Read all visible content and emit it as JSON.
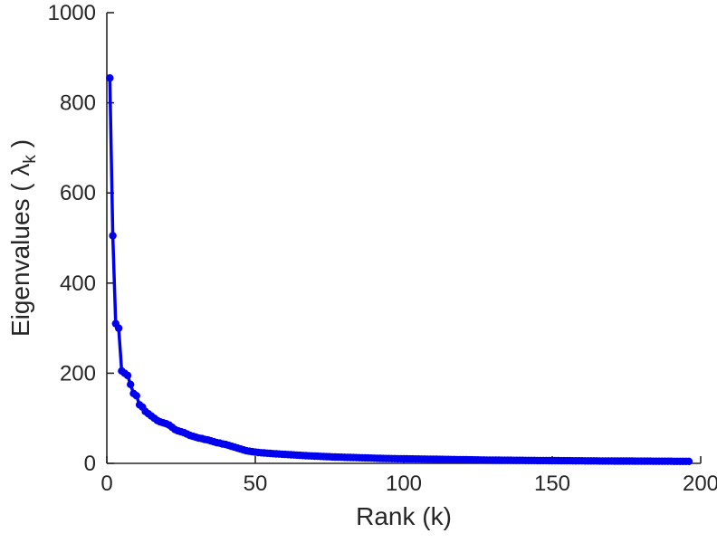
{
  "figure": {
    "background": "#ffffff",
    "axis_color": "#262626",
    "tick_label_color": "#262626"
  },
  "chart_data": {
    "type": "line",
    "title": "",
    "xlabel": "Rank (k)",
    "ylabel": "Eigenvalues ( λ_k )",
    "ylabel_parts": {
      "prefix": "Eigenvalues ( ",
      "symbol": "λ",
      "subscript": "k",
      "suffix": " )"
    },
    "x_range": [
      0,
      200
    ],
    "y_range": [
      0,
      1000
    ],
    "xticks": [
      0,
      50,
      100,
      150,
      200
    ],
    "yticks": [
      0,
      200,
      400,
      600,
      800,
      1000
    ],
    "grid": false,
    "legend": null,
    "series": [
      {
        "name": "eigenvalues",
        "color": "#0000ee",
        "marker": "circle",
        "x_start": 1,
        "x_step": 1,
        "x_description": "k = 1 to 196",
        "y": [
          855,
          505,
          310,
          300,
          205,
          200,
          195,
          175,
          155,
          150,
          130,
          125,
          115,
          110,
          105,
          100,
          95,
          92,
          90,
          88,
          85,
          80,
          75,
          72,
          70,
          68,
          65,
          62,
          60,
          58,
          56,
          55,
          53,
          52,
          50,
          48,
          46,
          45,
          43,
          42,
          40,
          38,
          36,
          34,
          32,
          30,
          28,
          27,
          26,
          25,
          24,
          23.5,
          23,
          22.5,
          22,
          21.5,
          21,
          20.6,
          20.2,
          19.8,
          19.4,
          19,
          18.6,
          18.2,
          17.8,
          17.4,
          17,
          16.7,
          16.4,
          16.1,
          15.8,
          15.5,
          15.2,
          14.9,
          14.6,
          14.3,
          14,
          13.8,
          13.6,
          13.4,
          13.2,
          13,
          12.8,
          12.6,
          12.4,
          12.2,
          12,
          11.8,
          11.6,
          11.4,
          11.2,
          11,
          10.8,
          10.7,
          10.6,
          10.5,
          10.4,
          10.3,
          10.2,
          10.1,
          10,
          9.9,
          9.8,
          9.7,
          9.6,
          9.5,
          9.4,
          9.3,
          9.2,
          9.1,
          9,
          8.9,
          8.8,
          8.7,
          8.6,
          8.5,
          8.4,
          8.3,
          8.2,
          8.1,
          8,
          7.9,
          7.8,
          7.7,
          7.6,
          7.5,
          7.4,
          7.3,
          7.2,
          7.1,
          7,
          6.95,
          6.9,
          6.85,
          6.8,
          6.75,
          6.7,
          6.65,
          6.6,
          6.55,
          6.5,
          6.45,
          6.4,
          6.35,
          6.3,
          6.25,
          6.2,
          6.15,
          6.1,
          6.05,
          6,
          5.95,
          5.9,
          5.85,
          5.8,
          5.75,
          5.7,
          5.65,
          5.6,
          5.55,
          5.5,
          5.46,
          5.42,
          5.38,
          5.34,
          5.3,
          5.26,
          5.22,
          5.18,
          5.14,
          5.1,
          5.07,
          5.04,
          5.01,
          4.98,
          4.95,
          4.92,
          4.89,
          4.86,
          4.83,
          4.8,
          4.77,
          4.74,
          4.71,
          4.68,
          4.65,
          4.62,
          4.59,
          4.56,
          4.53,
          4.5,
          4.47,
          4.44,
          4.41,
          4.38,
          4.35
        ]
      }
    ]
  }
}
